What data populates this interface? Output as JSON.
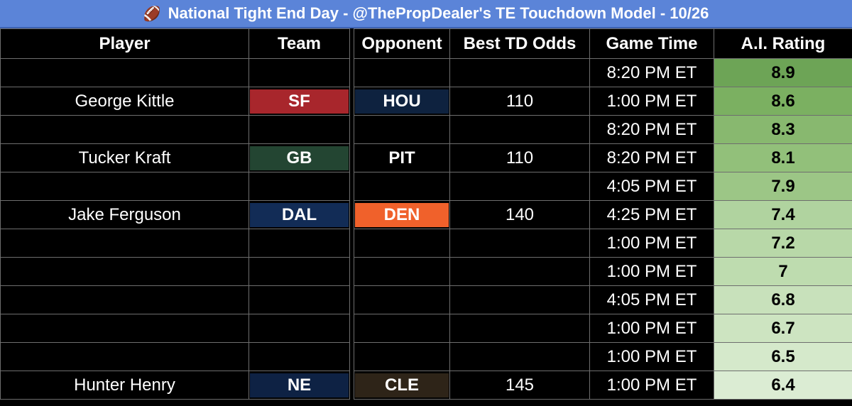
{
  "title": "National Tight End Day - @ThePropDealer's TE Touchdown Model - 10/26",
  "icons": {
    "title_icon": "football-icon"
  },
  "columns": {
    "player": "Player",
    "team": "Team",
    "opponent": "Opponent",
    "odds": "Best TD Odds",
    "time": "Game Time",
    "rating": "A.I. Rating"
  },
  "rows": [
    {
      "player": "",
      "team": "",
      "team_color": "",
      "opponent": "",
      "opp_color": "",
      "odds": "",
      "time": "8:20 PM ET",
      "rating": "8.9",
      "rating_color": "#6da456"
    },
    {
      "player": "George Kittle",
      "team": "SF",
      "team_color": "#a8262c",
      "opponent": "HOU",
      "opp_color": "#0e223f",
      "odds": "110",
      "time": "1:00 PM ET",
      "rating": "8.6",
      "rating_color": "#7bb061"
    },
    {
      "player": "",
      "team": "",
      "team_color": "",
      "opponent": "",
      "opp_color": "",
      "odds": "",
      "time": "8:20 PM ET",
      "rating": "8.3",
      "rating_color": "#88b86f"
    },
    {
      "player": "Tucker Kraft",
      "team": "GB",
      "team_color": "#234532",
      "opponent": "PIT",
      "opp_color": "#000000",
      "odds": "110",
      "time": "8:20 PM ET",
      "rating": "8.1",
      "rating_color": "#92c07a"
    },
    {
      "player": "",
      "team": "",
      "team_color": "",
      "opponent": "",
      "opp_color": "",
      "odds": "",
      "time": "4:05 PM ET",
      "rating": "7.9",
      "rating_color": "#9cc686"
    },
    {
      "player": "Jake Ferguson",
      "team": "DAL",
      "team_color": "#122c56",
      "opponent": "DEN",
      "opp_color": "#f0612b",
      "odds": "140",
      "time": "4:25 PM ET",
      "rating": "7.4",
      "rating_color": "#b0d39f"
    },
    {
      "player": "",
      "team": "",
      "team_color": "",
      "opponent": "",
      "opp_color": "",
      "odds": "",
      "time": "1:00 PM ET",
      "rating": "7.2",
      "rating_color": "#b8d8a8"
    },
    {
      "player": "",
      "team": "",
      "team_color": "",
      "opponent": "",
      "opp_color": "",
      "odds": "",
      "time": "1:00 PM ET",
      "rating": "7",
      "rating_color": "#bedcaf"
    },
    {
      "player": "",
      "team": "",
      "team_color": "",
      "opponent": "",
      "opp_color": "",
      "odds": "",
      "time": "4:05 PM ET",
      "rating": "6.8",
      "rating_color": "#c8e1bb"
    },
    {
      "player": "",
      "team": "",
      "team_color": "",
      "opponent": "",
      "opp_color": "",
      "odds": "",
      "time": "1:00 PM ET",
      "rating": "6.7",
      "rating_color": "#cde4c1"
    },
    {
      "player": "",
      "team": "",
      "team_color": "",
      "opponent": "",
      "opp_color": "",
      "odds": "",
      "time": "1:00 PM ET",
      "rating": "6.5",
      "rating_color": "#d5e9cb"
    },
    {
      "player": "Hunter Henry",
      "team": "NE",
      "team_color": "#0e2244",
      "opponent": "CLE",
      "opp_color": "#2e2418",
      "odds": "145",
      "time": "1:00 PM ET",
      "rating": "6.4",
      "rating_color": "#dbecd3"
    }
  ]
}
